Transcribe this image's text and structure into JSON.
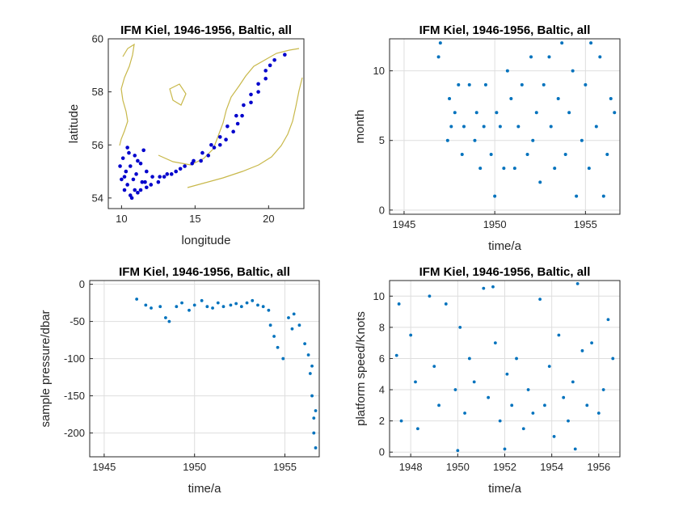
{
  "chart_data": [
    {
      "type": "scatter",
      "title": "IFM Kiel, 1946-1956, Baltic, all",
      "xlabel": "longitude",
      "ylabel": "latitude",
      "xlim": [
        9.1,
        22.4
      ],
      "ylim": [
        53.6,
        60.0
      ],
      "xticks": [
        "10",
        "15",
        "20"
      ],
      "yticks": [
        "54",
        "56",
        "58",
        "60"
      ],
      "grid": false,
      "map_background": "coastline (yellow)",
      "colors": {
        "coast": "#c8b84a",
        "points": "#0000cc"
      },
      "series": [
        {
          "x": [
            21.1,
            20.1,
            19.8,
            19.3,
            18.8,
            18.2,
            17.9,
            17.6,
            17.1,
            16.7,
            16.3,
            15.9,
            15.4,
            14.8,
            14.0,
            13.4,
            12.9,
            12.5,
            12.0,
            11.7,
            11.6,
            11.3,
            11.1,
            10.6,
            10.2,
            10.0,
            9.9,
            10.1,
            10.5,
            10.9,
            11.3,
            11.7,
            12.1,
            12.6,
            13.1,
            13.7,
            14.3,
            14.9,
            15.5,
            16.1,
            16.7,
            17.2,
            17.8,
            18.3,
            18.8,
            19.3,
            19.8,
            20.4,
            10.4,
            10.8,
            11.0,
            10.3,
            10.6,
            11.1,
            10.9,
            10.2,
            10.7,
            11.4,
            11.5,
            10.4
          ],
          "y": [
            59.4,
            59.0,
            58.5,
            58.0,
            57.6,
            57.1,
            56.8,
            56.5,
            56.2,
            56.0,
            55.9,
            55.6,
            55.4,
            55.3,
            55.1,
            54.9,
            54.8,
            54.6,
            54.5,
            54.4,
            54.6,
            54.3,
            54.2,
            54.1,
            54.3,
            54.7,
            55.2,
            55.5,
            55.7,
            55.6,
            55.3,
            55.0,
            54.8,
            54.8,
            54.9,
            55.0,
            55.2,
            55.4,
            55.7,
            56.0,
            56.3,
            56.7,
            57.1,
            57.5,
            57.9,
            58.3,
            58.8,
            59.2,
            54.5,
            54.7,
            54.9,
            55.0,
            55.2,
            55.4,
            54.3,
            54.8,
            54.0,
            54.6,
            55.8,
            55.9
          ]
        }
      ]
    },
    {
      "type": "scatter",
      "title": "IFM Kiel, 1946-1956, Baltic, all",
      "xlabel": "time/a",
      "ylabel": "month",
      "xlim": [
        1944.2,
        1956.9
      ],
      "ylim": [
        -0.3,
        12.3
      ],
      "xticks": [
        "1945",
        "1950",
        "1955"
      ],
      "yticks": [
        "0",
        "5",
        "10"
      ],
      "grid": true,
      "colors": {
        "points": "#0072bd"
      },
      "series": [
        {
          "x": [
            1946.9,
            1947.0,
            1947.4,
            1947.5,
            1947.6,
            1947.8,
            1948.0,
            1948.2,
            1948.3,
            1948.6,
            1948.9,
            1949.0,
            1949.2,
            1949.4,
            1949.5,
            1949.8,
            1950.0,
            1950.1,
            1950.3,
            1950.5,
            1950.7,
            1950.9,
            1951.1,
            1951.3,
            1951.5,
            1951.8,
            1952.0,
            1952.1,
            1952.3,
            1952.5,
            1952.7,
            1953.0,
            1953.1,
            1953.3,
            1953.5,
            1953.7,
            1953.9,
            1954.1,
            1954.3,
            1954.5,
            1954.8,
            1955.0,
            1955.2,
            1955.3,
            1955.6,
            1955.8,
            1956.0,
            1956.2,
            1956.4,
            1956.6
          ],
          "y": [
            11,
            12,
            5,
            8,
            6,
            7,
            9,
            4,
            6,
            9,
            5,
            7,
            3,
            6,
            9,
            4,
            1,
            7,
            6,
            3,
            10,
            8,
            3,
            6,
            9,
            4,
            11,
            5,
            7,
            2,
            9,
            11,
            6,
            3,
            8,
            12,
            4,
            7,
            10,
            1,
            5,
            9,
            3,
            12,
            6,
            11,
            1,
            4,
            8,
            7
          ]
        }
      ]
    },
    {
      "type": "scatter",
      "title": "IFM Kiel, 1946-1956, Baltic, all",
      "xlabel": "time/a",
      "ylabel": "sample pressure/dbar",
      "xlim": [
        1944.2,
        1956.9
      ],
      "ylim": [
        -232,
        5
      ],
      "xticks": [
        "1945",
        "1950",
        "1955"
      ],
      "yticks": [
        "0",
        "-50",
        "-100",
        "-150",
        "-200"
      ],
      "grid": true,
      "colors": {
        "points": "#0072bd"
      },
      "series": [
        {
          "x": [
            1946.8,
            1947.3,
            1947.6,
            1948.1,
            1948.4,
            1948.6,
            1949.0,
            1949.3,
            1949.7,
            1950.0,
            1950.4,
            1950.7,
            1951.0,
            1951.3,
            1951.6,
            1952.0,
            1952.3,
            1952.6,
            1952.9,
            1953.2,
            1953.5,
            1953.8,
            1954.1,
            1954.2,
            1954.4,
            1954.6,
            1954.9,
            1955.2,
            1955.4,
            1955.5,
            1955.8,
            1956.1,
            1956.3,
            1956.4,
            1956.5,
            1956.6,
            1956.6,
            1956.7,
            1956.7,
            1956.5
          ],
          "y": [
            -20,
            -28,
            -32,
            -30,
            -45,
            -50,
            -30,
            -25,
            -35,
            -28,
            -22,
            -30,
            -32,
            -25,
            -30,
            -28,
            -26,
            -30,
            -25,
            -22,
            -28,
            -30,
            -35,
            -55,
            -70,
            -85,
            -100,
            -45,
            -60,
            -40,
            -55,
            -80,
            -95,
            -120,
            -150,
            -180,
            -200,
            -220,
            -170,
            -110
          ]
        }
      ]
    },
    {
      "type": "scatter",
      "title": "IFM Kiel, 1946-1956, Baltic, all",
      "xlabel": "time/a",
      "ylabel": "platform speed/Knots",
      "xlim": [
        1947.1,
        1956.9
      ],
      "ylim": [
        -0.3,
        11
      ],
      "xticks": [
        "1948",
        "1950",
        "1952",
        "1954",
        "1956"
      ],
      "yticks": [
        "0",
        "2",
        "4",
        "6",
        "8",
        "10"
      ],
      "grid": true,
      "colors": {
        "points": "#0072bd"
      },
      "series": [
        {
          "x": [
            1947.4,
            1947.5,
            1947.6,
            1948.0,
            1948.2,
            1948.3,
            1948.8,
            1949.0,
            1949.2,
            1949.5,
            1949.9,
            1950.1,
            1950.3,
            1950.5,
            1950.7,
            1951.1,
            1951.3,
            1951.5,
            1951.6,
            1951.8,
            1952.1,
            1952.3,
            1952.5,
            1952.8,
            1953.0,
            1953.2,
            1953.5,
            1953.7,
            1953.9,
            1954.1,
            1954.3,
            1954.5,
            1954.7,
            1954.9,
            1955.1,
            1955.3,
            1955.5,
            1955.7,
            1956.0,
            1956.2,
            1956.4,
            1956.6,
            1955.0,
            1950.0,
            1952.0
          ],
          "y": [
            6.2,
            9.5,
            2.0,
            7.5,
            4.5,
            1.5,
            10.0,
            5.5,
            3.0,
            9.5,
            4.0,
            8.0,
            2.5,
            6.0,
            4.5,
            10.5,
            3.5,
            10.6,
            7.0,
            2.0,
            5.0,
            3.0,
            6.0,
            1.5,
            4.0,
            2.5,
            9.8,
            3.0,
            5.5,
            1.0,
            7.5,
            3.5,
            2.0,
            4.5,
            10.8,
            6.5,
            3.0,
            7.0,
            2.5,
            4.0,
            8.5,
            6.0,
            0.2,
            0.1,
            0.2
          ]
        }
      ]
    }
  ]
}
